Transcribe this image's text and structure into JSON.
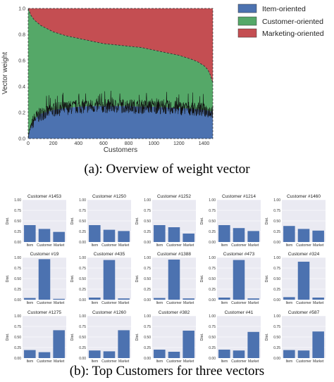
{
  "captions": {
    "a": "(a): Overview of weight vector",
    "b": "(b): Top Customers for three vectors"
  },
  "chart_data": [
    {
      "type": "area",
      "stacked": true,
      "xlabel": "Customers",
      "ylabel": "Vector weight",
      "xlim": [
        0,
        1470
      ],
      "ylim": [
        0,
        1.0
      ],
      "xticks": [
        0,
        200,
        400,
        600,
        800,
        1000,
        1200,
        1400
      ],
      "yticks": [
        0.0,
        0.2,
        0.4,
        0.6,
        0.8,
        1.0
      ],
      "legend_position": "right",
      "grid": true,
      "x": [
        0,
        20,
        50,
        100,
        200,
        300,
        400,
        500,
        600,
        700,
        800,
        900,
        1000,
        1100,
        1200,
        1300,
        1350,
        1400,
        1430,
        1450,
        1470
      ],
      "series": [
        {
          "name": "Item-oriented",
          "color": "#4c72b0",
          "values": [
            0.02,
            0.09,
            0.15,
            0.19,
            0.22,
            0.235,
            0.245,
            0.25,
            0.25,
            0.25,
            0.25,
            0.245,
            0.245,
            0.24,
            0.235,
            0.23,
            0.225,
            0.22,
            0.215,
            0.21,
            0.21
          ]
        },
        {
          "name": "Customer-oriented",
          "color": "#55a868",
          "cumulative": [
            1.0,
            0.95,
            0.91,
            0.87,
            0.82,
            0.79,
            0.77,
            0.75,
            0.73,
            0.72,
            0.71,
            0.7,
            0.68,
            0.66,
            0.64,
            0.61,
            0.59,
            0.56,
            0.53,
            0.49,
            0.43
          ]
        },
        {
          "name": "Marketing-oriented",
          "color": "#c44e52",
          "cumulative": [
            1.0,
            1.0,
            1.0,
            1.0,
            1.0,
            1.0,
            1.0,
            1.0,
            1.0,
            1.0,
            1.0,
            1.0,
            1.0,
            1.0,
            1.0,
            1.0,
            1.0,
            1.0,
            1.0,
            1.0,
            1.0
          ]
        }
      ]
    },
    {
      "type": "bar",
      "ylabel": "Dist.",
      "ylim": [
        0,
        1.0
      ],
      "yticks": [
        "0.00",
        "0.25",
        "0.50",
        "0.75",
        "1.00"
      ],
      "categories": [
        "Item",
        "Customer",
        "Market"
      ],
      "color": "#4c72b0",
      "panels": [
        {
          "title": "Customer #1453",
          "values": [
            0.4,
            0.31,
            0.24
          ]
        },
        {
          "title": "Customer #1250",
          "values": [
            0.4,
            0.29,
            0.26
          ]
        },
        {
          "title": "Customer #1252",
          "values": [
            0.4,
            0.35,
            0.2
          ]
        },
        {
          "title": "Customer #1214",
          "values": [
            0.4,
            0.33,
            0.26
          ]
        },
        {
          "title": "Customer #1460",
          "values": [
            0.38,
            0.31,
            0.27
          ]
        },
        {
          "title": "Customer #19",
          "values": [
            0.04,
            0.96,
            0.02
          ]
        },
        {
          "title": "Customer #435",
          "values": [
            0.05,
            0.94,
            0.03
          ]
        },
        {
          "title": "Customer #1388",
          "values": [
            0.04,
            0.95,
            0.03
          ]
        },
        {
          "title": "Customer #473",
          "values": [
            0.05,
            0.94,
            0.03
          ]
        },
        {
          "title": "Customer #324",
          "values": [
            0.06,
            0.9,
            0.05
          ]
        },
        {
          "title": "Customer #1275",
          "values": [
            0.19,
            0.14,
            0.66
          ]
        },
        {
          "title": "Customer #1260",
          "values": [
            0.18,
            0.16,
            0.66
          ]
        },
        {
          "title": "Customer #382",
          "values": [
            0.2,
            0.15,
            0.65
          ]
        },
        {
          "title": "Customer #41",
          "values": [
            0.2,
            0.18,
            0.62
          ]
        },
        {
          "title": "Customer #587",
          "values": [
            0.19,
            0.18,
            0.63
          ]
        }
      ]
    }
  ]
}
